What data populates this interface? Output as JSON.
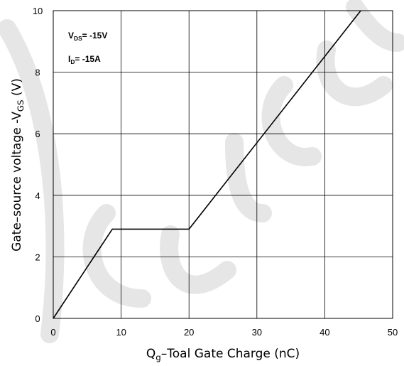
{
  "chart_data": {
    "type": "line",
    "xlabel": {
      "main": "Q",
      "sub": "g",
      "rest": "–Toal Gate Charge  (nC)"
    },
    "ylabel": {
      "main": "Gate–source voltage -V",
      "sub": "GS",
      "rest": " (V)"
    },
    "xlim": [
      0,
      50
    ],
    "ylim": [
      0,
      10
    ],
    "xticks": [
      0,
      10,
      20,
      30,
      40,
      50
    ],
    "yticks": [
      0,
      2,
      4,
      6,
      8,
      10
    ],
    "grid": true,
    "annotations": [
      {
        "main": "V",
        "sub": "DS",
        "rest": "= -15V"
      },
      {
        "main": "I",
        "sub": "D",
        "rest": "= -15A"
      }
    ],
    "series": [
      {
        "x": [
          0,
          8.7,
          20.0,
          45.3
        ],
        "y": [
          0,
          2.9,
          2.9,
          10.0
        ]
      }
    ]
  }
}
